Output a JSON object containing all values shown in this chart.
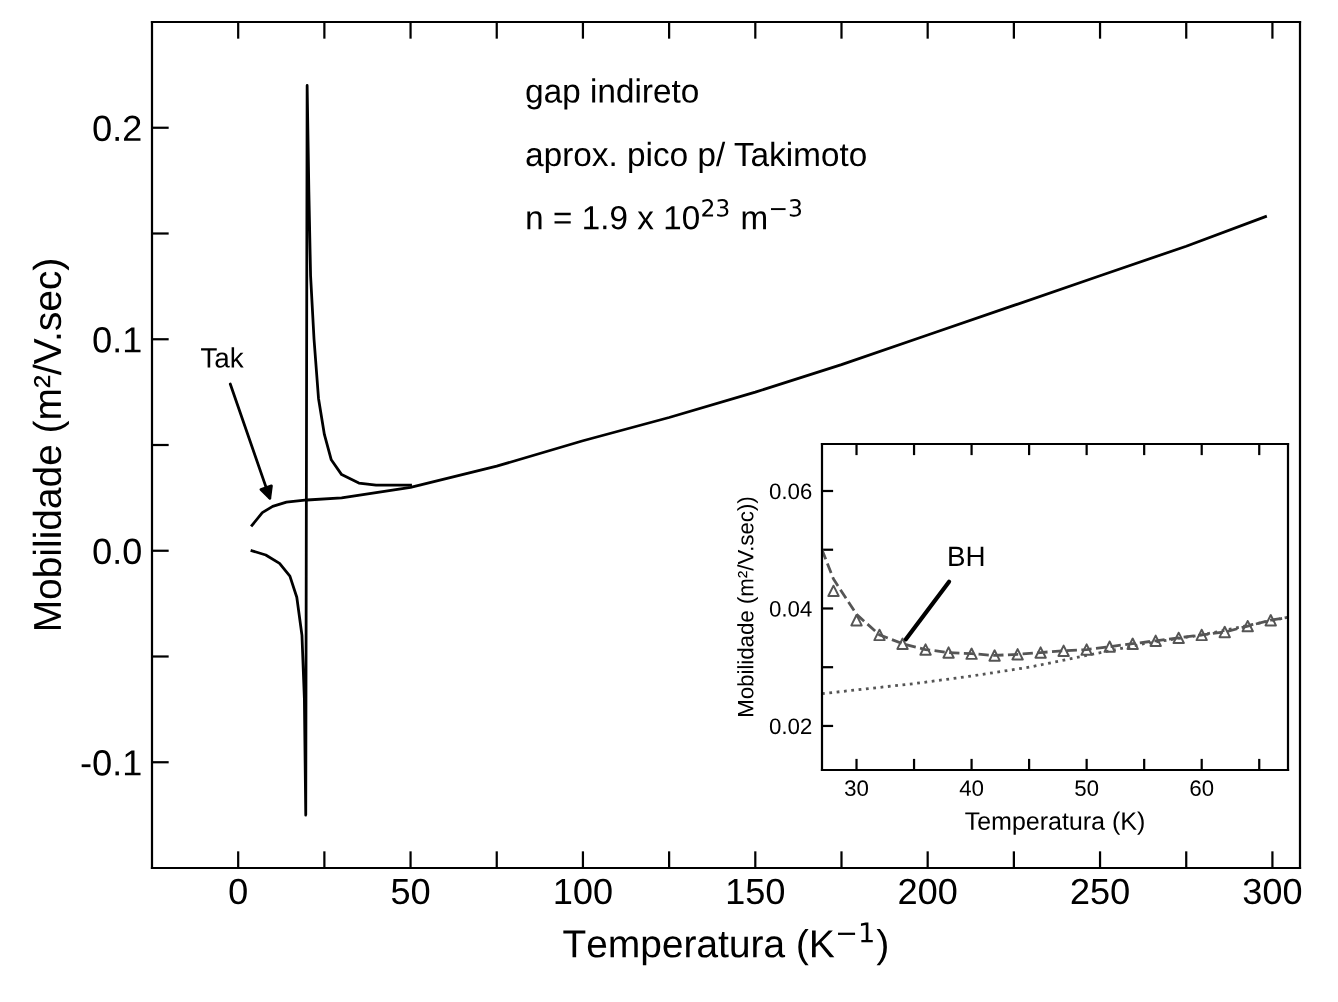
{
  "chart_data": [
    {
      "type": "line",
      "xlabel": "Temperatura (K$^{−1}$)",
      "ylabel": "Mobilidade (m²/V.sec)",
      "xlim": [
        -25,
        308
      ],
      "ylim": [
        -0.15,
        0.25
      ],
      "xticks": [
        0,
        {
          "value": 25,
          "label": null
        },
        50,
        {
          "value": 75,
          "label": null
        },
        100,
        {
          "value": 125,
          "label": null
        },
        150,
        {
          "value": 175,
          "label": null
        },
        200,
        {
          "value": 225,
          "label": null
        },
        250,
        {
          "value": 275,
          "label": null
        },
        300
      ],
      "yticks": [
        {
          "value": -0.1,
          "label": "-0.1"
        },
        {
          "value": -0.05,
          "label": null
        },
        {
          "value": 0.0,
          "label": "0.0"
        },
        {
          "value": 0.05,
          "label": null
        },
        {
          "value": 0.1,
          "label": "0.1"
        },
        {
          "value": 0.15,
          "label": null
        },
        {
          "value": 0.2,
          "label": "0.2"
        }
      ],
      "series": [
        {
          "color": "#000000",
          "line_style": "solid",
          "x": [
            4,
            8,
            12,
            15,
            17,
            18.5,
            19.2,
            19.6,
            20,
            20.5,
            21,
            22,
            23.3,
            25,
            27,
            30,
            35,
            40,
            50
          ],
          "values": [
            0.0,
            -0.002,
            -0.006,
            -0.012,
            -0.022,
            -0.04,
            -0.07,
            -0.125,
            0.22,
            0.17,
            0.13,
            0.1,
            0.072,
            0.055,
            0.043,
            0.036,
            0.032,
            0.031,
            0.031
          ]
        },
        {
          "color": "#000000",
          "line_style": "solid",
          "x": [
            4,
            7,
            10,
            14,
            20,
            30,
            50,
            75,
            100,
            125,
            150,
            175,
            200,
            225,
            250,
            275,
            298
          ],
          "values": [
            0.012,
            0.018,
            0.021,
            0.023,
            0.024,
            0.025,
            0.03,
            0.04,
            0.052,
            0.063,
            0.075,
            0.088,
            0.102,
            0.116,
            0.13,
            0.144,
            0.158
          ]
        }
      ],
      "annotations": [
        "gap indireto",
        "aprox. pico p/ Takimoto",
        "n = 1.9 x 10$^{23}$ m$^{−3}$",
        {
          "text": "Tak",
          "x": 10,
          "y": 0.021
        }
      ],
      "grid": false,
      "legend": false
    },
    {
      "type": "line",
      "xlabel": "Temperatura (K)",
      "ylabel": "Mobilidade (m²/V.sec))",
      "xlim": [
        27,
        67.5
      ],
      "ylim": [
        0.0125,
        0.068
      ],
      "xticks": [
        30,
        {
          "value": 35,
          "label": null
        },
        40,
        {
          "value": 45,
          "label": null
        },
        50,
        {
          "value": 55,
          "label": null
        },
        60,
        {
          "value": 65,
          "label": null
        }
      ],
      "yticks": [
        0.02,
        {
          "value": 0.03,
          "label": null
        },
        0.04,
        {
          "value": 0.05,
          "label": null
        },
        0.06
      ],
      "series": [
        {
          "color": "#555555",
          "line_style": "dashed",
          "marker": "none",
          "x": [
            27,
            28,
            30,
            32,
            34,
            36,
            38,
            40,
            42,
            44,
            46,
            48,
            50,
            52,
            54,
            56,
            58,
            60,
            62,
            64,
            66,
            67.5
          ],
          "values": [
            0.05,
            0.045,
            0.039,
            0.0355,
            0.034,
            0.033,
            0.0325,
            0.0323,
            0.032,
            0.0322,
            0.0325,
            0.0328,
            0.033,
            0.0335,
            0.034,
            0.0345,
            0.035,
            0.0355,
            0.036,
            0.037,
            0.038,
            0.0385
          ]
        },
        {
          "type": "scatter",
          "color": "#555555",
          "marker": "triangle",
          "x": [
            28,
            30,
            32,
            34,
            36,
            38,
            40,
            42,
            44,
            46,
            48,
            50,
            52,
            54,
            56,
            58,
            60,
            62,
            64,
            66
          ],
          "values": [
            0.043,
            0.038,
            0.0355,
            0.034,
            0.033,
            0.0325,
            0.0323,
            0.032,
            0.0322,
            0.0325,
            0.0328,
            0.033,
            0.0335,
            0.034,
            0.0345,
            0.035,
            0.0355,
            0.036,
            0.037,
            0.038
          ]
        },
        {
          "color": "#555555",
          "line_style": "dotted",
          "marker": "none",
          "x": [
            27,
            35,
            40,
            45,
            50,
            55,
            60,
            67.5
          ],
          "values": [
            0.0255,
            0.0272,
            0.0285,
            0.03,
            0.032,
            0.034,
            0.0355,
            0.0385
          ]
        }
      ],
      "annotations": [
        {
          "text": "BH",
          "x": 34,
          "y": 0.034
        }
      ],
      "grid": false,
      "legend": false
    }
  ]
}
